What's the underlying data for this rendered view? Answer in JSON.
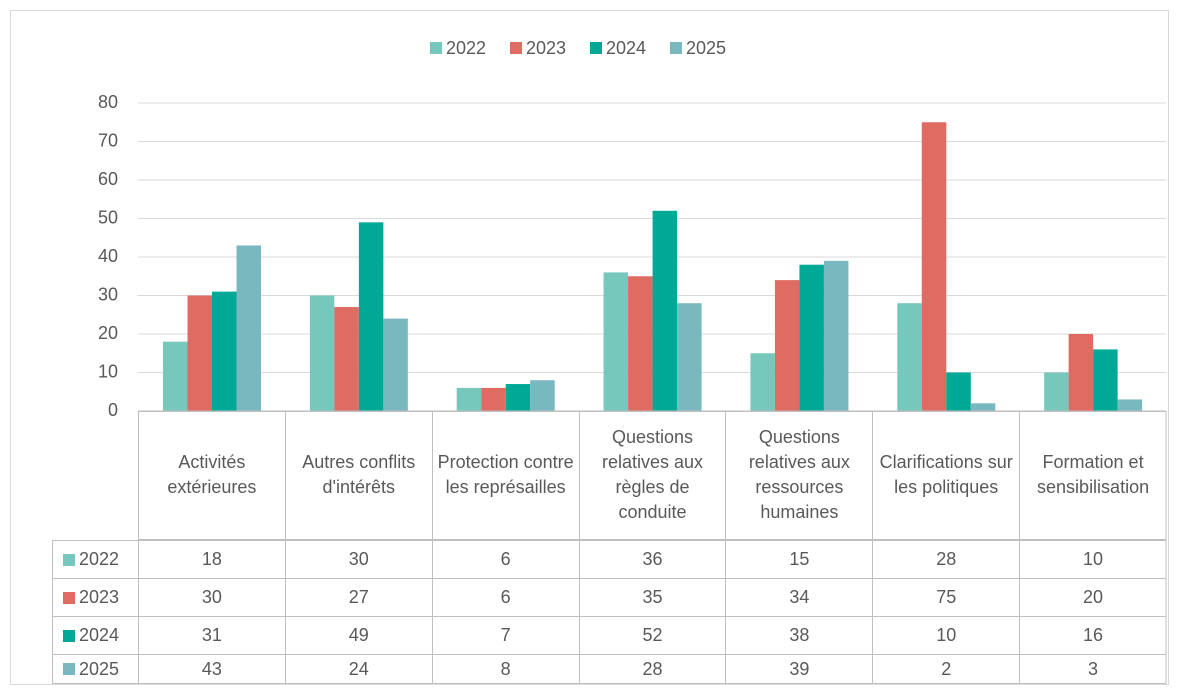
{
  "chart_data": {
    "type": "bar",
    "categories": [
      "Activités extérieures",
      "Autres conflits d'intérêts",
      "Protection contre les représailles",
      "Questions relatives aux règles de conduite",
      "Questions relatives aux ressources humaines",
      "Clarifications sur les politiques",
      "Formation et sensibilisation"
    ],
    "series": [
      {
        "name": "2022",
        "color": "#76c8bc",
        "values": [
          18,
          30,
          6,
          36,
          15,
          28,
          10
        ]
      },
      {
        "name": "2023",
        "color": "#e06b63",
        "values": [
          30,
          27,
          6,
          35,
          34,
          75,
          20
        ]
      },
      {
        "name": "2024",
        "color": "#00a896",
        "values": [
          31,
          49,
          7,
          52,
          38,
          10,
          16
        ]
      },
      {
        "name": "2025",
        "color": "#7ab8c0",
        "values": [
          43,
          24,
          8,
          28,
          39,
          2,
          3
        ]
      }
    ],
    "ylim": [
      0,
      80
    ],
    "yticks": [
      0,
      10,
      20,
      30,
      40,
      50,
      60,
      70,
      80
    ],
    "grid": true,
    "legend": "top"
  }
}
